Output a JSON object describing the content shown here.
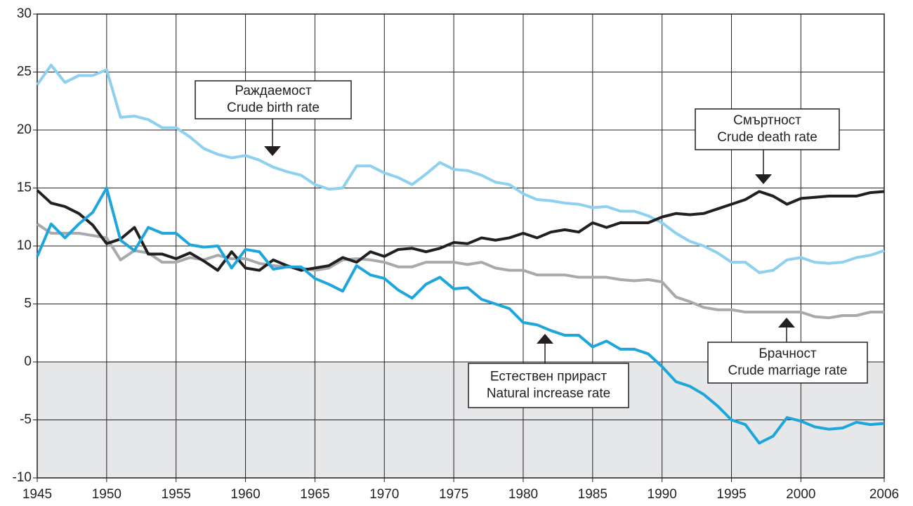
{
  "chart_data": {
    "type": "line",
    "x": [
      1945,
      1946,
      1947,
      1948,
      1949,
      1950,
      1951,
      1952,
      1953,
      1954,
      1955,
      1956,
      1957,
      1958,
      1959,
      1960,
      1961,
      1962,
      1963,
      1964,
      1965,
      1966,
      1967,
      1968,
      1969,
      1970,
      1971,
      1972,
      1973,
      1974,
      1975,
      1976,
      1977,
      1978,
      1979,
      1980,
      1981,
      1982,
      1983,
      1984,
      1985,
      1986,
      1987,
      1988,
      1989,
      1990,
      1991,
      1992,
      1993,
      1994,
      1995,
      1996,
      1997,
      1998,
      1999,
      2000,
      2001,
      2002,
      2003,
      2004,
      2005,
      2006
    ],
    "series": [
      {
        "color": "#8dd0ef",
        "values": [
          23.9,
          25.6,
          24.1,
          24.7,
          24.7,
          25.2,
          21.1,
          21.2,
          20.9,
          20.2,
          20.2,
          19.4,
          18.4,
          17.9,
          17.6,
          17.8,
          17.4,
          16.8,
          16.4,
          16.1,
          15.3,
          14.9,
          15.0,
          16.9,
          16.9,
          16.3,
          15.9,
          15.3,
          16.2,
          17.2,
          16.6,
          16.5,
          16.1,
          15.5,
          15.3,
          14.5,
          14.0,
          13.9,
          13.7,
          13.6,
          13.3,
          13.4,
          13.0,
          13.0,
          12.6,
          12.0,
          11.1,
          10.4,
          10.0,
          9.4,
          8.6,
          8.6,
          7.7,
          7.9,
          8.8,
          9.0,
          8.6,
          8.5,
          8.6,
          9.0,
          9.2,
          9.6
        ]
      },
      {
        "color": "#a7a9ac",
        "values": [
          11.9,
          11.1,
          11.1,
          11.1,
          10.9,
          10.7,
          8.8,
          9.6,
          9.4,
          8.6,
          8.6,
          9.0,
          8.8,
          9.2,
          8.9,
          8.9,
          8.5,
          8.3,
          8.2,
          8.1,
          7.9,
          8.1,
          8.8,
          8.9,
          8.8,
          8.6,
          8.2,
          8.2,
          8.6,
          8.6,
          8.6,
          8.4,
          8.6,
          8.1,
          7.9,
          7.9,
          7.5,
          7.5,
          7.5,
          7.3,
          7.3,
          7.3,
          7.1,
          7.0,
          7.1,
          6.9,
          5.6,
          5.2,
          4.7,
          4.5,
          4.5,
          4.3,
          4.3,
          4.3,
          4.3,
          4.3,
          3.9,
          3.8,
          4.0,
          4.0,
          4.3,
          4.3
        ]
      },
      {
        "color": "#231f20",
        "values": [
          14.8,
          13.7,
          13.4,
          12.8,
          11.8,
          10.2,
          10.6,
          11.6,
          9.3,
          9.3,
          8.9,
          9.4,
          8.7,
          7.9,
          9.5,
          8.1,
          7.9,
          8.8,
          8.3,
          7.9,
          8.1,
          8.3,
          9.0,
          8.6,
          9.5,
          9.1,
          9.7,
          9.8,
          9.5,
          9.8,
          10.3,
          10.2,
          10.7,
          10.5,
          10.7,
          11.1,
          10.7,
          11.2,
          11.4,
          11.2,
          12.0,
          11.6,
          12.0,
          12.0,
          12.0,
          12.5,
          12.8,
          12.7,
          12.8,
          13.2,
          13.6,
          14.0,
          14.7,
          14.3,
          13.6,
          14.1,
          14.2,
          14.3,
          14.3,
          14.3,
          14.6,
          14.7
        ]
      },
      {
        "color": "#1ea6dc",
        "values": [
          9.1,
          11.9,
          10.7,
          11.9,
          12.9,
          15.0,
          10.5,
          9.6,
          11.6,
          11.1,
          11.1,
          10.1,
          9.9,
          10.0,
          8.1,
          9.7,
          9.5,
          8.0,
          8.2,
          8.2,
          7.2,
          6.7,
          6.1,
          8.3,
          7.5,
          7.2,
          6.2,
          5.5,
          6.7,
          7.3,
          6.3,
          6.4,
          5.4,
          5.0,
          4.6,
          3.4,
          3.2,
          2.7,
          2.3,
          2.3,
          1.3,
          1.8,
          1.1,
          1.1,
          0.7,
          -0.4,
          -1.7,
          -2.1,
          -2.8,
          -3.8,
          -5.0,
          -5.4,
          -7.0,
          -6.4,
          -4.8,
          -5.1,
          -5.6,
          -5.8,
          -5.7,
          -5.2,
          -5.4,
          -5.3
        ]
      }
    ],
    "annotations": [
      {
        "lines": [
          "Раждаемост",
          "Crude birth rate"
        ]
      },
      {
        "lines": [
          "Смъртност",
          "Crude death rate"
        ]
      },
      {
        "lines": [
          "Естествен прираст",
          "Natural increase rate"
        ]
      },
      {
        "lines": [
          "Брачност",
          "Crude marriage rate"
        ]
      }
    ],
    "xlim": [
      1945,
      2006
    ],
    "xticks": [
      1945,
      1950,
      1955,
      1960,
      1965,
      1970,
      1975,
      1980,
      1985,
      1990,
      1995,
      2000,
      2006
    ],
    "ylim": [
      -10,
      30
    ],
    "yticks": [
      -10,
      -5,
      0,
      5,
      10,
      15,
      20,
      25,
      30
    ],
    "grid": true,
    "negative_shade": "#e6e7e8"
  }
}
